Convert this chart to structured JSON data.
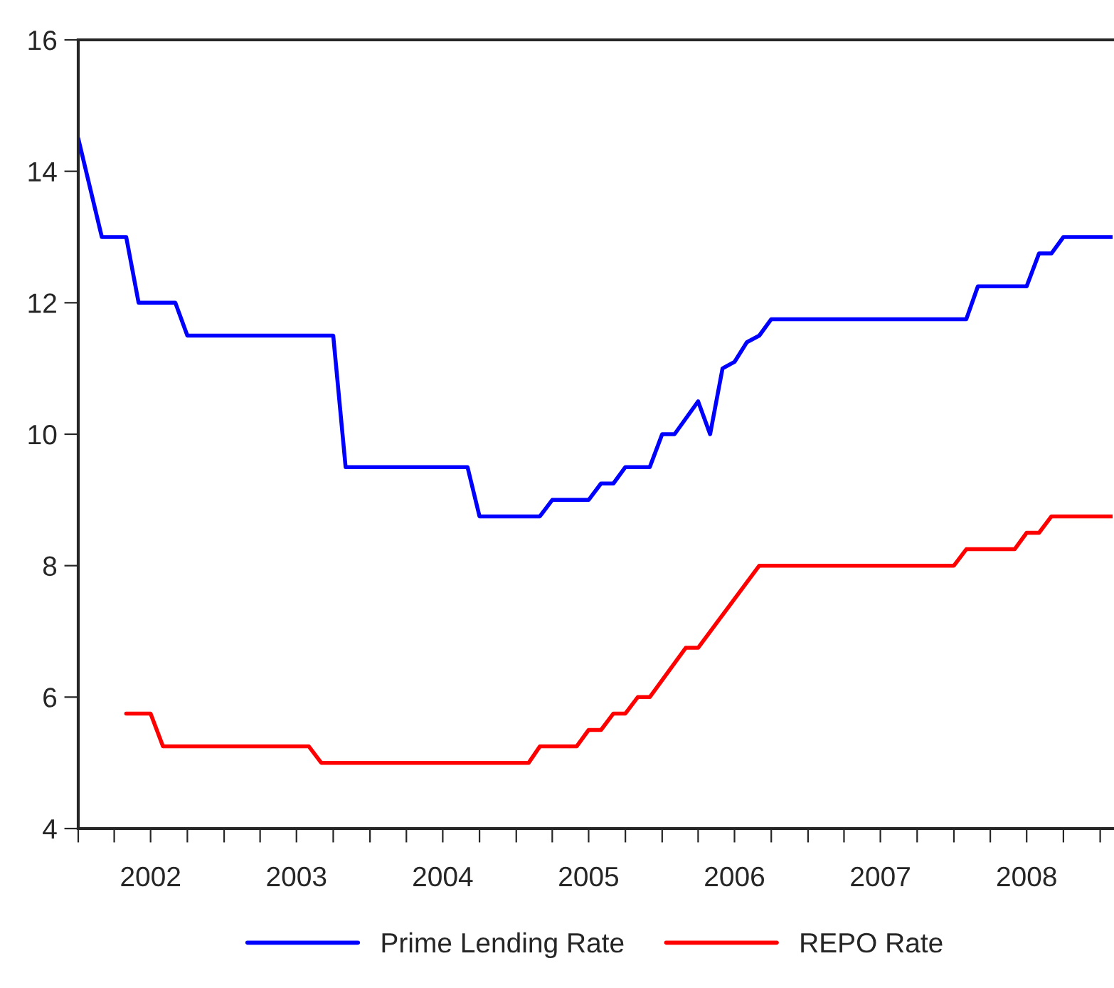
{
  "chart_data": {
    "type": "line",
    "series": [
      {
        "name": "Prime Lending Rate",
        "color": "#0000ff",
        "x": [
          "2002-01",
          "2002-03",
          "2002-05",
          "2002-06",
          "2002-09",
          "2002-10",
          "2003-10",
          "2003-11",
          "2004-09",
          "2004-10",
          "2005-03",
          "2005-04",
          "2005-07",
          "2005-08",
          "2005-09",
          "2005-10",
          "2005-12",
          "2006-01",
          "2006-02",
          "2006-04",
          "2006-05",
          "2006-06",
          "2006-07",
          "2006-08",
          "2006-09",
          "2006-10",
          "2008-02",
          "2008-03",
          "2008-07",
          "2008-08",
          "2008-09",
          "2008-10",
          "2009-02"
        ],
        "values": [
          14.5,
          13,
          13,
          12,
          12,
          11.5,
          11.5,
          9.5,
          9.5,
          8.75,
          8.75,
          9,
          9,
          9.25,
          9.25,
          9.5,
          9.5,
          10,
          10,
          10.5,
          10,
          11,
          11.1,
          11.4,
          11.5,
          11.75,
          11.75,
          12.25,
          12.25,
          12.75,
          12.75,
          13,
          13
        ]
      },
      {
        "name": "REPO Rate",
        "color": "#ff0000",
        "x": [
          "2002-05",
          "2002-07",
          "2002-08",
          "2003-08",
          "2003-09",
          "2005-02",
          "2005-03",
          "2005-06",
          "2005-07",
          "2005-08",
          "2005-09",
          "2005-10",
          "2005-11",
          "2005-12",
          "2006-03",
          "2006-04",
          "2006-09",
          "2008-01",
          "2008-02",
          "2008-06",
          "2008-07",
          "2008-08",
          "2008-09",
          "2009-02"
        ],
        "values": [
          5.75,
          5.75,
          5.25,
          5.25,
          5,
          5,
          5.25,
          5.25,
          5.5,
          5.5,
          5.75,
          5.75,
          6,
          6,
          6.75,
          6.75,
          8,
          8,
          8.25,
          8.25,
          8.5,
          8.5,
          8.75,
          8.75
        ]
      }
    ],
    "xlim": [
      "2002-01",
      "2009-02"
    ],
    "xticks": [
      {
        "value": "2002-01",
        "label": null
      },
      {
        "value": "2002-04",
        "label": null
      },
      {
        "value": "2002-07",
        "label": "2002"
      },
      {
        "value": "2002-10",
        "label": null
      },
      {
        "value": "2003-01",
        "label": null
      },
      {
        "value": "2003-04",
        "label": null
      },
      {
        "value": "2003-07",
        "label": "2003"
      },
      {
        "value": "2003-10",
        "label": null
      },
      {
        "value": "2004-01",
        "label": null
      },
      {
        "value": "2004-04",
        "label": null
      },
      {
        "value": "2004-07",
        "label": "2004"
      },
      {
        "value": "2004-10",
        "label": null
      },
      {
        "value": "2005-01",
        "label": null
      },
      {
        "value": "2005-04",
        "label": null
      },
      {
        "value": "2005-07",
        "label": "2005"
      },
      {
        "value": "2005-10",
        "label": null
      },
      {
        "value": "2006-01",
        "label": null
      },
      {
        "value": "2006-04",
        "label": null
      },
      {
        "value": "2006-07",
        "label": "2006"
      },
      {
        "value": "2006-10",
        "label": null
      },
      {
        "value": "2007-01",
        "label": null
      },
      {
        "value": "2007-04",
        "label": null
      },
      {
        "value": "2007-07",
        "label": "2007"
      },
      {
        "value": "2007-10",
        "label": null
      },
      {
        "value": "2008-01",
        "label": null
      },
      {
        "value": "2008-04",
        "label": null
      },
      {
        "value": "2008-07",
        "label": "2008"
      },
      {
        "value": "2008-10",
        "label": null
      },
      {
        "value": "2009-01",
        "label": null
      }
    ],
    "ylim": [
      4,
      16
    ],
    "yticks": [
      4,
      6,
      8,
      10,
      12,
      14,
      16
    ],
    "grid": false,
    "legend": "bottom",
    "marker": "none",
    "line_style": "solid"
  }
}
